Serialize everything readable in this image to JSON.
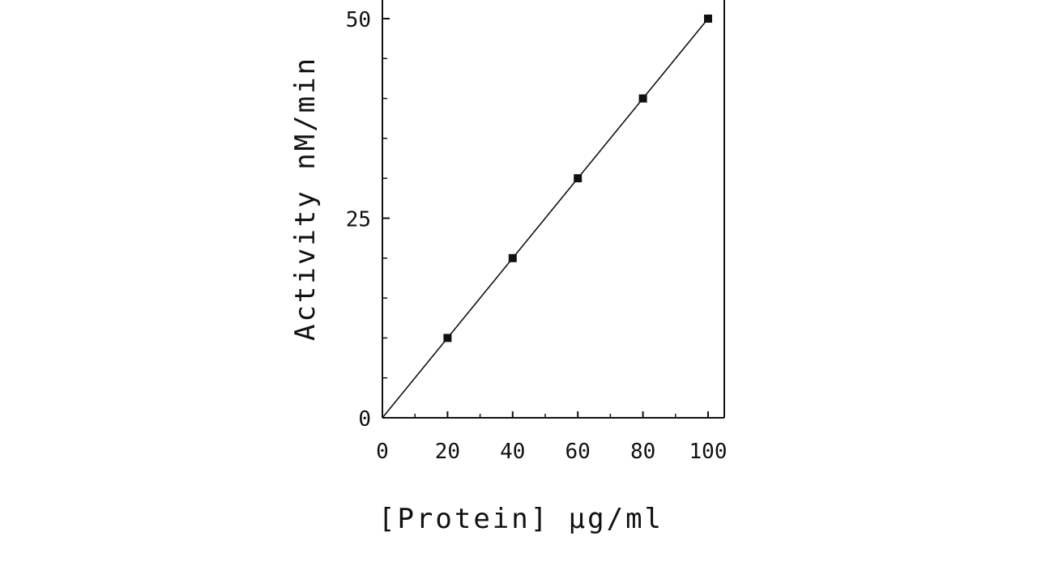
{
  "chart_data": {
    "type": "scatter",
    "title": "",
    "xlabel": "[Protein] µg/ml",
    "ylabel": "Activity   nM/min",
    "xlim": [
      0,
      105
    ],
    "ylim": [
      0,
      50
    ],
    "x_ticks": [
      0,
      20,
      40,
      60,
      80,
      100
    ],
    "y_ticks": [
      0,
      25,
      50
    ],
    "x_tick_labels": [
      "0",
      "20",
      "40",
      "60",
      "80",
      "100"
    ],
    "y_tick_labels": [
      "0",
      "25",
      "50"
    ],
    "grid": false,
    "series": [
      {
        "x": [
          20,
          40,
          60,
          80,
          100
        ],
        "y": [
          10,
          20,
          30,
          40,
          50
        ],
        "marker": "square",
        "fit_line": {
          "from": [
            0,
            0
          ],
          "to": [
            100,
            50
          ]
        }
      }
    ],
    "colors": {
      "ink": "#111111",
      "background": "#ffffff"
    }
  }
}
